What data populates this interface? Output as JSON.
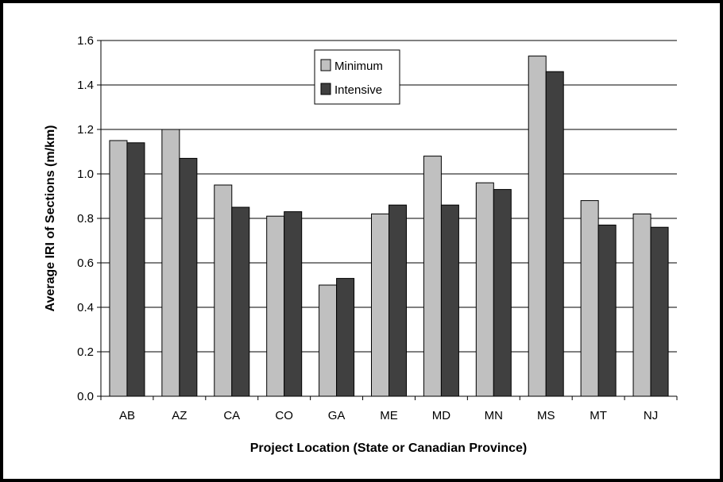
{
  "chart_data": {
    "type": "bar",
    "xlabel": "Project Location (State or Canadian Province)",
    "ylabel": "Average IRI of Sections (m/km)",
    "ylim": [
      0,
      1.6
    ],
    "yticks": [
      "0.0",
      "0.2",
      "0.4",
      "0.6",
      "0.8",
      "1.0",
      "1.2",
      "1.4",
      "1.6"
    ],
    "grid": true,
    "legend_position": "top-center",
    "categories": [
      "AB",
      "AZ",
      "CA",
      "CO",
      "GA",
      "ME",
      "MD",
      "MN",
      "MS",
      "MT",
      "NJ"
    ],
    "series": [
      {
        "name": "Minimum",
        "color": "#c0c0c0",
        "values": [
          1.15,
          1.2,
          0.95,
          0.81,
          0.5,
          0.82,
          1.08,
          0.96,
          1.53,
          0.88,
          0.82
        ]
      },
      {
        "name": "Intensive",
        "color": "#404040",
        "values": [
          1.14,
          1.07,
          0.85,
          0.83,
          0.53,
          0.86,
          0.86,
          0.93,
          1.46,
          0.77,
          0.76
        ]
      }
    ]
  }
}
